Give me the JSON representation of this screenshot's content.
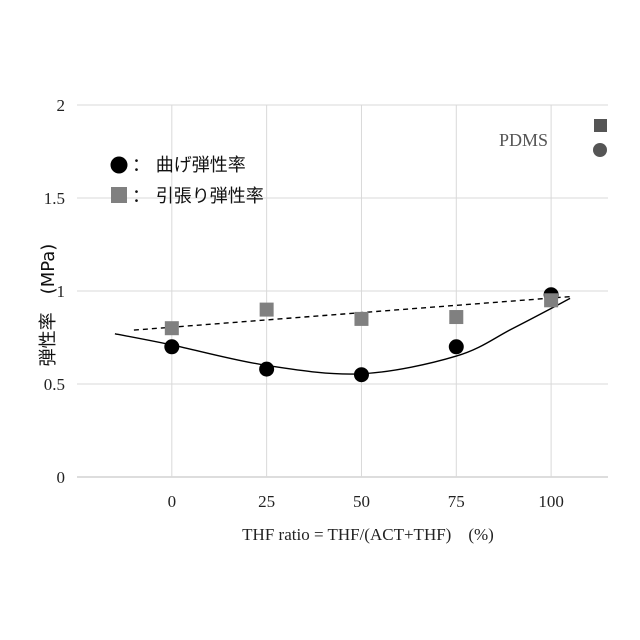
{
  "chart_data": {
    "type": "scatter",
    "xlabel": "THF ratio = THF/(ACT+THF)　(%)",
    "ylabel": "弾性率　(MPa)",
    "x_ticks": [
      "0",
      "25",
      "50",
      "75",
      "100"
    ],
    "y_ticks": [
      "0",
      "0.5",
      "1",
      "1.5",
      "2"
    ],
    "xlim": [
      -25,
      115
    ],
    "ylim": [
      0,
      2
    ],
    "grid": true,
    "legend_position": "top-left",
    "series": [
      {
        "name": "： 曲げ弾性率",
        "marker": "circle",
        "color": "#000000",
        "x": [
          0,
          25,
          50,
          75,
          100
        ],
        "y": [
          0.7,
          0.58,
          0.55,
          0.7,
          0.98
        ],
        "trend": "polynomial",
        "trend_style": "solid",
        "trend_x": [
          -15,
          0,
          25,
          50,
          75,
          90,
          105
        ],
        "trend_y": [
          0.77,
          0.71,
          0.6,
          0.555,
          0.65,
          0.8,
          0.96
        ]
      },
      {
        "name": "： 引張り弾性率",
        "marker": "square",
        "color": "#808080",
        "x": [
          0,
          25,
          50,
          75,
          100
        ],
        "y": [
          0.8,
          0.9,
          0.85,
          0.86,
          0.95
        ],
        "trend": "linear",
        "trend_style": "dashed",
        "trend_x": [
          -10,
          105
        ],
        "trend_y": [
          0.79,
          0.97
        ]
      }
    ],
    "annotation": {
      "text": "PDMS",
      "markers": [
        {
          "shape": "square",
          "color": "#555555"
        },
        {
          "shape": "circle",
          "color": "#555555"
        }
      ]
    }
  }
}
